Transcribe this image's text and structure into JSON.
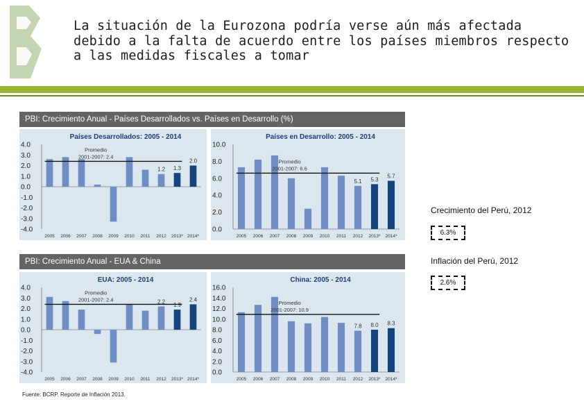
{
  "title": "La situación de la Eurozona podría verse aún más afectada debido a la falta de acuerdo entre los países miembros respecto a las medidas fiscales a tomar",
  "section1_header": "PBI: Crecimiento Anual - Países Desarrollados vs. Países en Desarrollo (%)",
  "section2_header": "PBI: Crecimiento Anual - EUA & China",
  "side": {
    "growth_label": "Crecimiento del Perú, 2012",
    "growth_value": "6.3%",
    "inflation_label": "Inflación del Perú, 2012",
    "inflation_value": "2.6%"
  },
  "source": "Fuente: BCRP. Reporte de Inflación 2013.",
  "colors": {
    "bar_light": "#6f8ec4",
    "bar_dark": "#13447e",
    "panel_bg": "#dbe6ef",
    "title_blue": "#1f3d7a",
    "accent_green": "#97b533"
  },
  "chart_data": [
    {
      "type": "bar",
      "title": "Países Desarrollados: 2005 - 2014",
      "categories": [
        "2005",
        "2006",
        "2007",
        "2008",
        "2009",
        "2010",
        "2011",
        "2012",
        "2013*",
        "2014*"
      ],
      "values": [
        2.6,
        2.8,
        2.6,
        0.2,
        -3.3,
        2.8,
        1.6,
        1.2,
        1.3,
        2.0
      ],
      "labels": [
        "",
        "",
        "",
        "",
        "",
        "",
        "",
        "1.2",
        "1.3",
        "2.0"
      ],
      "dark_from_index": 8,
      "ylim": [
        -4.0,
        4.0
      ],
      "ticks": [
        4.0,
        3.0,
        2.0,
        1.0,
        0.0,
        -1.0,
        -2.0,
        -3.0,
        -4.0
      ],
      "tick_labels": [
        "4.0",
        "3.0",
        "2.0",
        "1.0",
        "0.0",
        "-1.0",
        "-2.0",
        "-3.0",
        "-4.0"
      ],
      "avg_value": 2.4,
      "avg_text": [
        "Promedio",
        "2001-2007: 2.4"
      ]
    },
    {
      "type": "bar",
      "title": "Países en Desarrollo: 2005 - 2014",
      "categories": [
        "2005",
        "2006",
        "2007",
        "2008",
        "2009",
        "2010",
        "2011",
        "2012",
        "2013*",
        "2014*"
      ],
      "values": [
        7.3,
        8.2,
        8.7,
        6.0,
        2.4,
        7.3,
        6.3,
        5.1,
        5.3,
        5.7
      ],
      "labels": [
        "",
        "",
        "",
        "",
        "",
        "",
        "",
        "5.1",
        "5.3",
        "5.7"
      ],
      "dark_from_index": 8,
      "ylim": [
        0.0,
        10.0
      ],
      "ticks": [
        10.0,
        8.0,
        6.0,
        4.0,
        2.0,
        0.0
      ],
      "tick_labels": [
        "10.0",
        "8.0",
        "6.0",
        "4.0",
        "2.0",
        "0.0"
      ],
      "avg_value": 6.6,
      "avg_text": [
        "Promedio",
        "2001-2007: 6.6"
      ]
    },
    {
      "type": "bar",
      "title": "EUA: 2005 - 2014",
      "categories": [
        "2005",
        "2006",
        "2007",
        "2008",
        "2009",
        "2010",
        "2011",
        "2012",
        "2013*",
        "2014*"
      ],
      "values": [
        3.1,
        2.7,
        1.9,
        -0.4,
        -3.1,
        2.4,
        1.8,
        2.2,
        1.9,
        2.4
      ],
      "labels": [
        "",
        "",
        "",
        "",
        "",
        "",
        "",
        "2.2",
        "1.9",
        "2.4"
      ],
      "dark_from_index": 8,
      "ylim": [
        -4.0,
        4.0
      ],
      "ticks": [
        4.0,
        3.0,
        2.0,
        1.0,
        0.0,
        -1.0,
        -2.0,
        -3.0,
        -4.0
      ],
      "tick_labels": [
        "4.0",
        "3.0",
        "2.0",
        "1.0",
        "0.0",
        "-1.0",
        "-2.0",
        "-3.0",
        "-4.0"
      ],
      "avg_value": 2.4,
      "avg_text": [
        "Promedio",
        "2001-2007: 2.4"
      ]
    },
    {
      "type": "bar",
      "title": "China: 2005 - 2014",
      "categories": [
        "2005",
        "2006",
        "2007",
        "2008",
        "2009",
        "2010",
        "2011",
        "2012",
        "2013*",
        "2014*"
      ],
      "values": [
        11.3,
        12.7,
        14.2,
        9.6,
        9.2,
        10.4,
        9.3,
        7.8,
        8.0,
        8.3
      ],
      "labels": [
        "",
        "",
        "",
        "",
        "",
        "",
        "",
        "7.8",
        "8.0",
        "8.3"
      ],
      "dark_from_index": 8,
      "ylim": [
        0.0,
        16.0
      ],
      "ticks": [
        16.0,
        14.0,
        12.0,
        10.0,
        8.0,
        6.0,
        4.0,
        2.0,
        0.0
      ],
      "tick_labels": [
        "16.0",
        "14.0",
        "12.0",
        "10.0",
        "8.0",
        "6.0",
        "4.0",
        "2.0",
        "0.0"
      ],
      "avg_value": 10.9,
      "avg_text": [
        "Promedio",
        "2001-2007: 10.9"
      ]
    }
  ]
}
